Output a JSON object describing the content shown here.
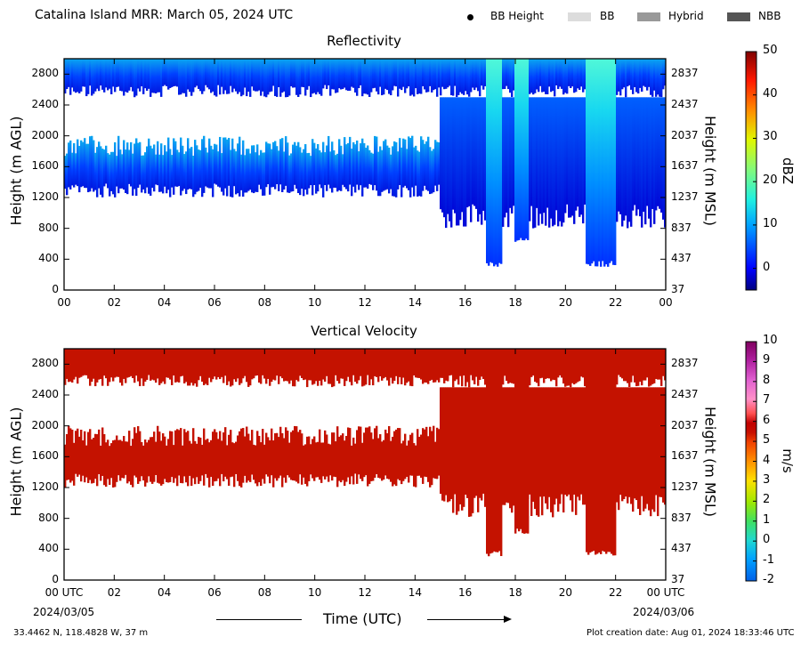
{
  "header": {
    "title": "Catalina Island MRR:  March 05, 2024 UTC",
    "legend": [
      {
        "label": "BB Height",
        "kind": "dot",
        "color": "#000000"
      },
      {
        "label": "BB",
        "kind": "swatch",
        "color": "#dcdcdc"
      },
      {
        "label": "Hybrid",
        "kind": "swatch",
        "color": "#999999"
      },
      {
        "label": "NBB",
        "kind": "swatch",
        "color": "#555555"
      }
    ]
  },
  "chart_data": [
    {
      "type": "heatmap",
      "title": "Reflectivity",
      "ylabel": "Height (m AGL)",
      "ylabel_right": "Height (m MSL)",
      "yticks": [
        "0",
        "400",
        "800",
        "1200",
        "1600",
        "2000",
        "2400",
        "2800"
      ],
      "yticks_right": [
        "37",
        "437",
        "837",
        "1237",
        "1637",
        "2037",
        "2437",
        "2837"
      ],
      "xticks": [
        "00",
        "02",
        "04",
        "06",
        "08",
        "10",
        "12",
        "14",
        "16",
        "18",
        "20",
        "22",
        "00"
      ],
      "x_range_hours": [
        0,
        24
      ],
      "y_range_m": [
        0,
        3000
      ],
      "colorbar": {
        "label": "dBZ",
        "ticks": [
          "0",
          "10",
          "20",
          "30",
          "40",
          "50"
        ],
        "range": [
          -5,
          50
        ]
      },
      "echo_regions_hours_m": [
        {
          "x": [
            0.0,
            24.0
          ],
          "y": [
            2500,
            3000
          ],
          "level": "low"
        },
        {
          "x": [
            0.0,
            15.0
          ],
          "y": [
            1200,
            2000
          ],
          "level": "low"
        },
        {
          "x": [
            15.0,
            24.0
          ],
          "y": [
            800,
            2500
          ],
          "level": "moderate"
        },
        {
          "x": [
            16.8,
            17.5
          ],
          "y": [
            300,
            3000
          ],
          "level": "high"
        },
        {
          "x": [
            18.0,
            18.5
          ],
          "y": [
            600,
            3000
          ],
          "level": "high"
        },
        {
          "x": [
            20.8,
            22.0
          ],
          "y": [
            300,
            3000
          ],
          "level": "high"
        }
      ]
    },
    {
      "type": "heatmap",
      "title": "Vertical Velocity",
      "ylabel": "Height (m AGL)",
      "ylabel_right": "Height (m MSL)",
      "yticks": [
        "0",
        "400",
        "800",
        "1200",
        "1600",
        "2000",
        "2400",
        "2800"
      ],
      "yticks_right": [
        "37",
        "437",
        "837",
        "1237",
        "1637",
        "2037",
        "2437",
        "2837"
      ],
      "xticks": [
        "00 UTC",
        "02",
        "04",
        "06",
        "08",
        "10",
        "12",
        "14",
        "16",
        "18",
        "20",
        "22",
        "00 UTC"
      ],
      "x_range_hours": [
        0,
        24
      ],
      "y_range_m": [
        0,
        3000
      ],
      "colorbar": {
        "label": "m/s",
        "ticks": [
          "-2",
          "-1",
          "0",
          "1",
          "2",
          "3",
          "4",
          "5",
          "6",
          "7",
          "8",
          "9",
          "10"
        ],
        "range": [
          -2,
          10
        ]
      },
      "echo_value_ms": 6
    }
  ],
  "footer": {
    "start_date": "2024/03/05",
    "end_date": "2024/03/06",
    "xlabel": "Time (UTC)",
    "location": "33.4462 N, 118.4828 W, 37 m",
    "creation": "Plot creation date: Aug 01, 2024 18:33:46 UTC"
  }
}
